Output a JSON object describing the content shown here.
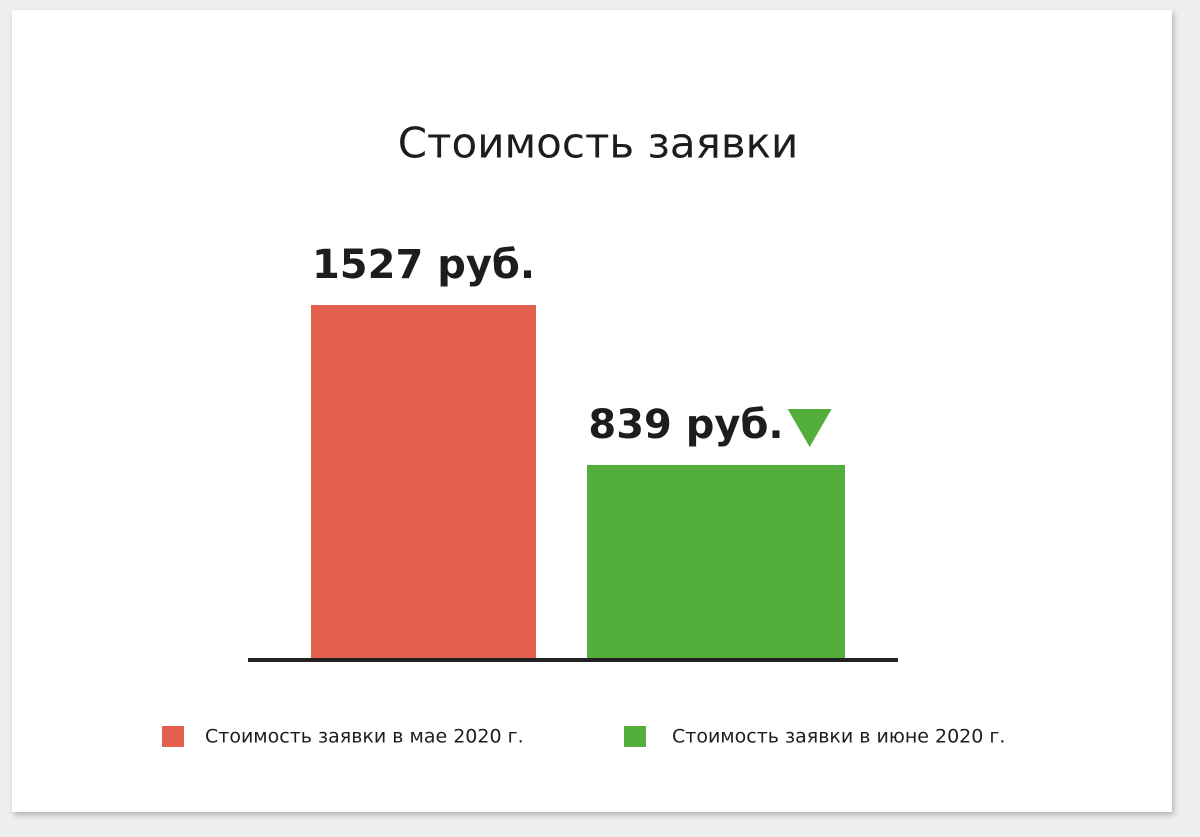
{
  "chart_data": {
    "type": "bar",
    "title": "Стоимость заявки",
    "series": [
      {
        "name": "Стоимость заявки в мае 2020 г.",
        "color": "#e3604f",
        "values": [
          1527
        ],
        "value_labels": [
          "1527 руб."
        ]
      },
      {
        "name": "Стоимость заявки в июне 2020 г.",
        "color": "#53ae3c",
        "values": [
          839
        ],
        "value_labels": [
          "839 руб."
        ]
      }
    ]
  }
}
